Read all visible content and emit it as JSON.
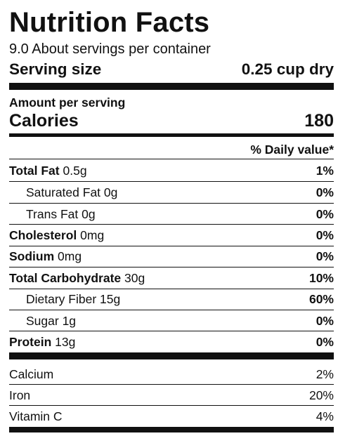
{
  "title": "Nutrition Facts",
  "servings_per_container": "9.0 About servings per container",
  "serving_size": {
    "label": "Serving size",
    "value": "0.25 cup dry"
  },
  "amount_per_serving": "Amount per serving",
  "calories": {
    "label": "Calories",
    "value": "180"
  },
  "daily_value_header": "% Daily value*",
  "nutrients": [
    {
      "name": "Total Fat",
      "amount": "0.5g",
      "dv": "1%"
    },
    {
      "name": "Saturated Fat",
      "amount": "0g",
      "dv": "0%"
    },
    {
      "name": "Trans Fat",
      "amount": "0g",
      "dv": "0%"
    },
    {
      "name": "Cholesterol",
      "amount": "0mg",
      "dv": "0%"
    },
    {
      "name": "Sodium",
      "amount": "0mg",
      "dv": "0%"
    },
    {
      "name": "Total Carbohydrate",
      "amount": "30g",
      "dv": "10%"
    },
    {
      "name": "Dietary Fiber",
      "amount": "15g",
      "dv": "60%"
    },
    {
      "name": "Sugar",
      "amount": "1g",
      "dv": "0%"
    },
    {
      "name": "Protein",
      "amount": "13g",
      "dv": "0%"
    }
  ],
  "vitamins": [
    {
      "name": "Calcium",
      "dv": "2%"
    },
    {
      "name": "Iron",
      "dv": "20%"
    },
    {
      "name": "Vitamin C",
      "dv": "4%"
    }
  ]
}
